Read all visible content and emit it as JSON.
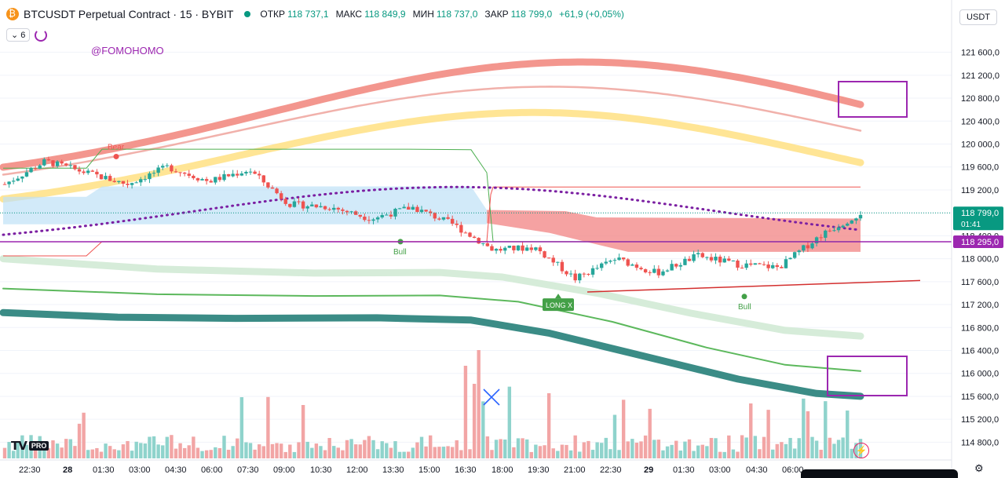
{
  "header": {
    "title": "BTCUSDT Perpetual Contract · 15 · BYBIT",
    "ohlc": [
      {
        "label": "ОТКР",
        "value": "118 737,1"
      },
      {
        "label": "МАКС",
        "value": "118 849,9"
      },
      {
        "label": "МИН",
        "value": "118 737,0"
      },
      {
        "label": "ЗАКР",
        "value": "118 799,0"
      }
    ],
    "change": "+61,9 (+0,05%)"
  },
  "indicators_badge": "6",
  "currency": "USDT",
  "watermark": "@FOMOHOMO",
  "tv_logo": "TV",
  "tv_pro": "PRO",
  "colors": {
    "up": "#26a69a",
    "down": "#ef5350",
    "vol_up": "#8fd3cc",
    "vol_down": "#f2a5a5",
    "purple": "#9c27b0",
    "last_price": "#089981",
    "ribbon_top": "#f28b82",
    "ribbon_yellow": "#ffe28a",
    "ribbon_bottom": "#3b8c86"
  },
  "chart_data": {
    "type": "candlestick",
    "ylim": [
      114600,
      121800
    ],
    "y_ticks": [
      "121 600,0",
      "121 200,0",
      "120 800,0",
      "120 400,0",
      "120 000,0",
      "119 600,0",
      "119 200,0",
      "118 800,0",
      "118 400,0",
      "118 000,0",
      "117 600,0",
      "117 200,0",
      "116 800,0",
      "116 400,0",
      "116 000,0",
      "115 600,0",
      "115 200,0",
      "114 800,0"
    ],
    "x_ticks": [
      "22:30",
      "28",
      "01:30",
      "03:00",
      "04:30",
      "06:00",
      "07:30",
      "09:00",
      "10:30",
      "12:00",
      "13:30",
      "15:00",
      "16:30",
      "18:00",
      "19:30",
      "21:00",
      "22:30",
      "29",
      "01:30",
      "03:00",
      "04:30",
      "06:00"
    ],
    "last_price": {
      "value": "118 799,0",
      "countdown": "01:41"
    },
    "horizontal_line": {
      "value": 118295,
      "label": "118 295,0"
    },
    "candles_summary": [
      {
        "time": "22:30",
        "close": 119300
      },
      {
        "time": "01:30",
        "close": 119700
      },
      {
        "time": "03:00",
        "close": 119500
      },
      {
        "time": "04:30",
        "close": 119300
      },
      {
        "time": "06:00",
        "close": 119600
      },
      {
        "time": "07:30",
        "close": 119350
      },
      {
        "time": "09:00",
        "close": 119550
      },
      {
        "time": "10:30",
        "close": 118950
      },
      {
        "time": "12:00",
        "close": 118900
      },
      {
        "time": "13:30",
        "close": 118700
      },
      {
        "time": "15:00",
        "close": 118900
      },
      {
        "time": "16:30",
        "close": 118600
      },
      {
        "time": "18:00",
        "close": 118150
      },
      {
        "time": "19:30",
        "close": 118200
      },
      {
        "time": "21:00",
        "close": 117650
      },
      {
        "time": "22:30",
        "close": 118000
      },
      {
        "time": "29",
        "close": 117750
      },
      {
        "time": "01:30",
        "close": 118050
      },
      {
        "time": "03:00",
        "close": 117900
      },
      {
        "time": "04:30",
        "close": 117850
      },
      {
        "time": "06:00",
        "close": 118400
      },
      {
        "time": "06:45",
        "close": 118799
      }
    ],
    "annotations": [
      {
        "text": "Bear",
        "price": 119850
      },
      {
        "text": "Bull",
        "price": 118380
      },
      {
        "text": "LONG X",
        "price": 117350
      },
      {
        "text": "Bull",
        "price": 117450
      }
    ]
  }
}
